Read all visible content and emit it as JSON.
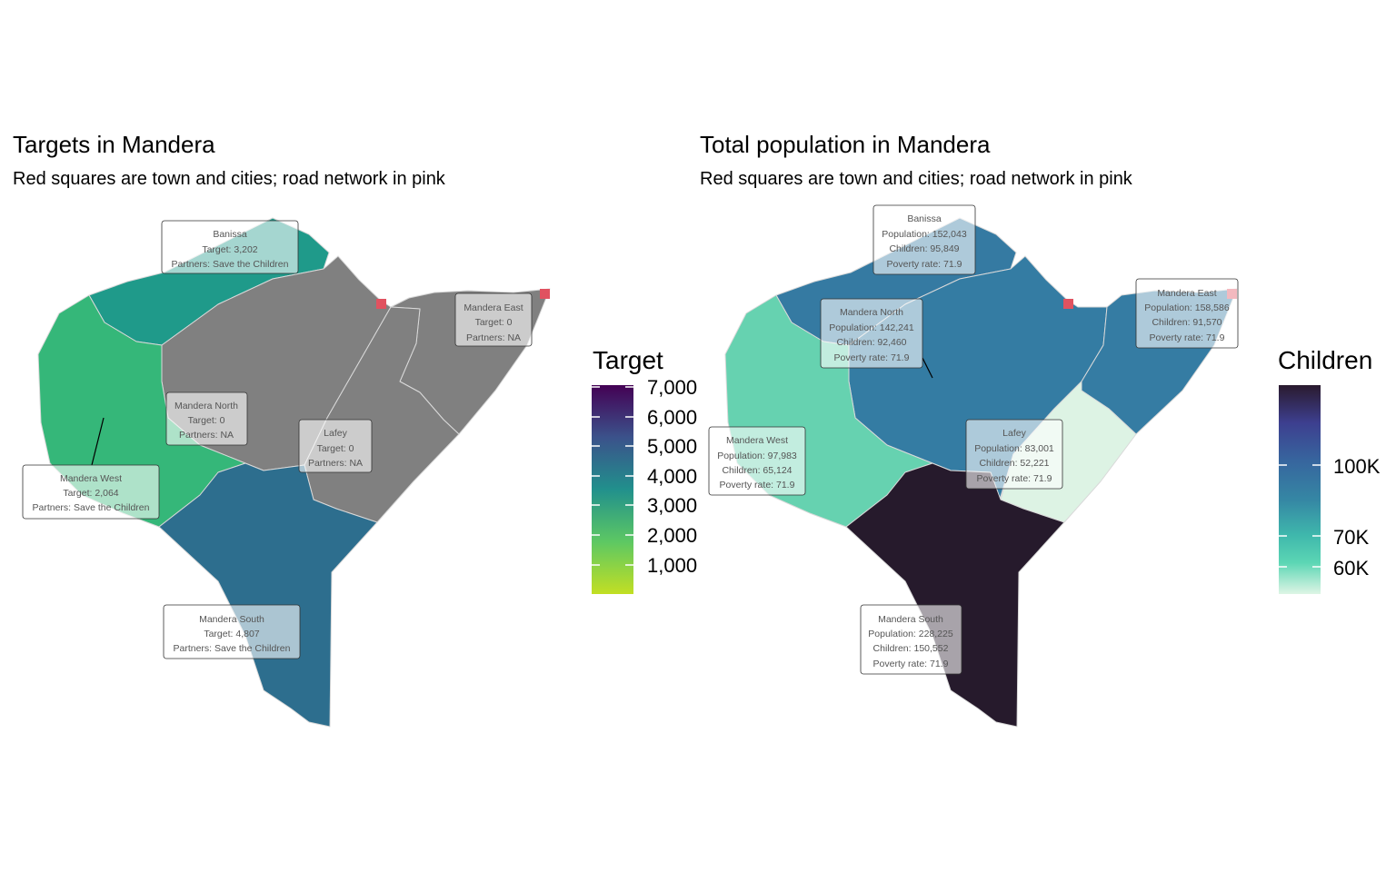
{
  "left": {
    "title": "Targets in Mandera",
    "subtitle": "Red squares are town and cities; road network in pink",
    "legend": {
      "title": "Target",
      "ticks": [
        "7,000",
        "6,000",
        "5,000",
        "4,000",
        "3,000",
        "2,000",
        "1,000"
      ],
      "gradient": [
        "#440154",
        "#3b528b",
        "#21908c",
        "#5dc863",
        "#c2df23"
      ]
    },
    "regions": {
      "banissa": {
        "name": "Banissa",
        "line2": "Target: 3,202",
        "line3": "Partners: Save the Children",
        "color": "#1f9a8a"
      },
      "north": {
        "name": "Mandera North",
        "line2": "Target: 0",
        "line3": "Partners: NA",
        "color": "#808080"
      },
      "east": {
        "name": "Mandera East",
        "line2": "Target: 0",
        "line3": "Partners: NA",
        "color": "#808080"
      },
      "west": {
        "name": "Mandera West",
        "line2": "Target: 2,064",
        "line3": "Partners: Save the Children",
        "color": "#35b779"
      },
      "lafey": {
        "name": "Lafey",
        "line2": "Target: 0",
        "line3": "Partners: NA",
        "color": "#808080"
      },
      "south": {
        "name": "Mandera South",
        "line2": "Target: 4,807",
        "line3": "Partners: Save the Children",
        "color": "#2d6e8e"
      }
    }
  },
  "right": {
    "title": "Total population in Mandera",
    "subtitle": "Red squares are town and cities; road network in pink",
    "legend": {
      "title": "Children",
      "ticks": [
        "100K",
        "70K",
        "60K"
      ],
      "gradient": [
        "#2a1a2e",
        "#3d3f8f",
        "#37659e",
        "#3587a4",
        "#3fb8ac",
        "#5cd6b4",
        "#def5e5"
      ]
    },
    "regions": {
      "banissa": {
        "name": "Banissa",
        "line2": "Population: 152,043",
        "line3": "Children: 95,849",
        "line4": "Poverty rate: 71.9",
        "color": "#357aa2"
      },
      "north": {
        "name": "Mandera North",
        "line2": "Population: 142,241",
        "line3": "Children: 92,460",
        "line4": "Poverty rate: 71.9",
        "color": "#347ca3"
      },
      "east": {
        "name": "Mandera East",
        "line2": "Population: 158,586",
        "line3": "Children: 91,570",
        "line4": "Poverty rate: 71.9",
        "color": "#357ca3"
      },
      "west": {
        "name": "Mandera West",
        "line2": "Population: 97,983",
        "line3": "Children: 65,124",
        "line4": "Poverty rate: 71.9",
        "color": "#66d2b0"
      },
      "lafey": {
        "name": "Lafey",
        "line2": "Population: 83,001",
        "line3": "Children: 52,221",
        "line4": "Poverty rate: 71.9",
        "color": "#ddf3e4"
      },
      "south": {
        "name": "Mandera South",
        "line2": "Population: 228,225",
        "line3": "Children: 150,552",
        "line4": "Poverty rate: 71.9",
        "color": "#261a2c"
      }
    }
  },
  "town_color": "#e05260"
}
